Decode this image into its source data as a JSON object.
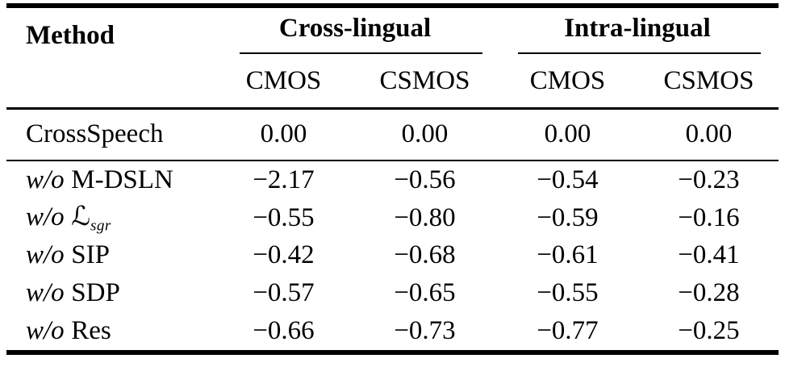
{
  "table": {
    "header": {
      "method": "Method",
      "group_cross": "Cross-lingual",
      "group_intra": "Intra-lingual",
      "sub": [
        "CMOS",
        "CSMOS",
        "CMOS",
        "CSMOS"
      ]
    },
    "baseline_row": {
      "method": {
        "prefix": "",
        "name": "CrossSpeech",
        "subscript": ""
      },
      "values": [
        "0.00",
        "0.00",
        "0.00",
        "0.00"
      ]
    },
    "rows": [
      {
        "method": {
          "prefix": "w/o",
          "name": "M-DSLN",
          "subscript": ""
        },
        "values": [
          "−2.17",
          "−0.56",
          "−0.54",
          "−0.23"
        ]
      },
      {
        "method": {
          "prefix": "w/o",
          "name": "ℒ",
          "subscript": "sgr"
        },
        "values": [
          "−0.55",
          "−0.80",
          "−0.59",
          "−0.16"
        ]
      },
      {
        "method": {
          "prefix": "w/o",
          "name": "SIP",
          "subscript": ""
        },
        "values": [
          "−0.42",
          "−0.68",
          "−0.61",
          "−0.41"
        ]
      },
      {
        "method": {
          "prefix": "w/o",
          "name": "SDP",
          "subscript": ""
        },
        "values": [
          "−0.57",
          "−0.65",
          "−0.55",
          "−0.28"
        ]
      },
      {
        "method": {
          "prefix": "w/o",
          "name": "Res",
          "subscript": ""
        },
        "values": [
          "−0.66",
          "−0.73",
          "−0.77",
          "−0.25"
        ]
      }
    ],
    "colors": {
      "text": "#000000",
      "background": "#ffffff",
      "rule": "#000000"
    }
  }
}
